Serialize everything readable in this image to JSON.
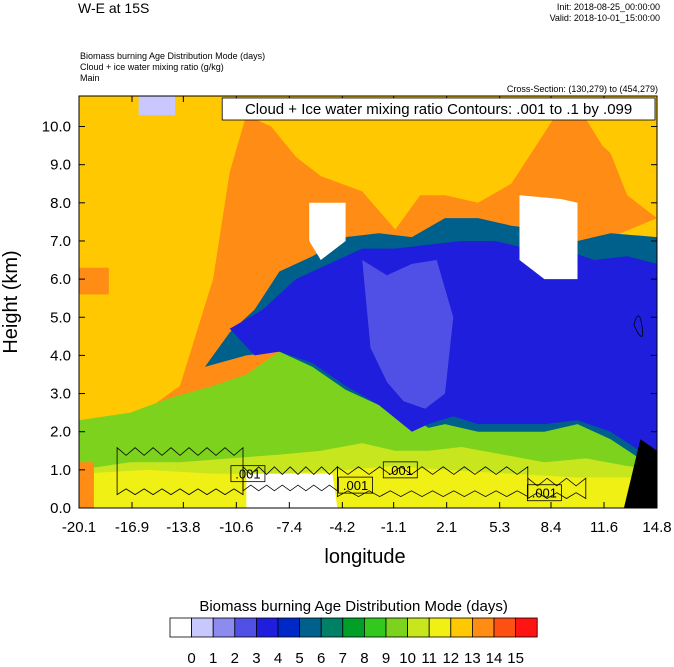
{
  "header": {
    "title": "W-E at 15S",
    "init": "Init: 2018-08-25_00:00:00",
    "valid": "Valid: 2018-10-01_15:00:00",
    "field_lines": [
      "Biomass burning Age Distribution Mode   (days)",
      "Cloud + ice water mixing ratio   (g/kg)",
      "Main"
    ],
    "cross_section": "Cross-Section: (130,279) to (454,279)"
  },
  "chart_data": {
    "type": "heatmap",
    "contour_title": "Cloud + Ice water mixing ratio Contours: .001 to .1 by .099",
    "xlabel": "longitude",
    "ylabel": "Height (km)",
    "xlim": [
      -20.1,
      14.8
    ],
    "ylim": [
      0.0,
      10.8
    ],
    "x_ticks": [
      "-20.1",
      "-16.9",
      "-13.8",
      "-10.6",
      "-7.4",
      "-4.2",
      "-1.1",
      "2.1",
      "5.3",
      "8.4",
      "11.6",
      "14.8"
    ],
    "y_ticks": [
      "0.0",
      "1.0",
      "2.0",
      "3.0",
      "4.0",
      "5.0",
      "6.0",
      "7.0",
      "8.0",
      "9.0",
      "10.0"
    ],
    "contour_labels": [
      {
        "text": ".001",
        "lon": -9.9,
        "height": 0.9
      },
      {
        "text": ".001",
        "lon": -3.4,
        "height": 0.6
      },
      {
        "text": ".001",
        "lon": -0.7,
        "height": 1.0
      },
      {
        "text": ".001",
        "lon": 8.0,
        "height": 0.4
      }
    ],
    "colorbar": {
      "title": "Biomass burning Age Distribution Mode  (days)",
      "tick_labels": [
        "0",
        "1",
        "2",
        "3",
        "4",
        "5",
        "6",
        "7",
        "8",
        "9",
        "10",
        "11",
        "12",
        "13",
        "14",
        "15"
      ],
      "colors": [
        "#ffffff",
        "#c8c8ff",
        "#8c8cf0",
        "#5050e6",
        "#1e1edc",
        "#0028c8",
        "#00608c",
        "#008064",
        "#00a028",
        "#32c81e",
        "#7dd21e",
        "#c8e61e",
        "#f0f014",
        "#ffc800",
        "#ff8c14",
        "#ff5014",
        "#ff1414"
      ]
    },
    "background_color": "#ffc800",
    "layers": [
      {
        "name": "age 13-14",
        "color": "#ff8c14",
        "x": [
          -20.1,
          -14.0,
          -12.0,
          -11.0,
          -10.0,
          -8.5,
          -7.0,
          -5.5,
          -3.0,
          -1.0,
          0.5,
          2.0,
          4.0,
          6.0,
          7.5,
          9.0,
          10.5,
          11.5,
          12.0,
          13.0,
          14.8
        ],
        "y": [
          1.3,
          3.2,
          6.0,
          8.8,
          10.3,
          10.0,
          9.2,
          8.7,
          8.3,
          7.3,
          8.2,
          8.2,
          8.0,
          8.5,
          9.5,
          10.5,
          10.2,
          9.5,
          9.3,
          8.2,
          7.6
        ]
      },
      {
        "name": "age 12-13",
        "color": "#ffc800",
        "x": [
          -20.1,
          -17.0,
          -15.0,
          -13.5,
          -12.8,
          -12.0,
          -14.8,
          -20.1
        ],
        "y": [
          5.8,
          6.1,
          6.5,
          6.8,
          8.0,
          10.8,
          10.8,
          10.8
        ]
      },
      {
        "name": "age 9-10",
        "color": "#7dd21e",
        "x": [
          -20.1,
          -17.0,
          -14.5,
          -12.0,
          -10.0,
          -8.0,
          -6.0,
          -4.0,
          -2.0,
          0.0,
          2.0,
          4.0,
          6.0,
          8.0,
          10.0,
          12.0,
          14.8
        ],
        "y": [
          2.3,
          2.5,
          2.9,
          3.2,
          3.5,
          4.1,
          4.5,
          4.4,
          4.6,
          5.2,
          5.6,
          5.9,
          6.3,
          6.6,
          6.8,
          7.0,
          7.0
        ]
      },
      {
        "name": "age 6-7",
        "color": "#00608c",
        "x": [
          -12.5,
          -11.0,
          -9.5,
          -8.0,
          -6.0,
          -4.0,
          -2.0,
          0.0,
          2.0,
          4.0,
          6.0,
          8.0,
          10.0,
          12.0,
          14.8,
          14.8,
          12.0,
          10.0,
          8.0,
          6.0,
          4.0,
          2.0,
          1.0,
          0.0,
          -2.0,
          -4.0,
          -6.0,
          -8.0,
          -10.0,
          -12.5
        ],
        "y": [
          3.7,
          4.6,
          5.2,
          6.2,
          6.6,
          7.1,
          7.2,
          7.1,
          7.6,
          7.6,
          7.4,
          7.3,
          7.0,
          7.2,
          7.1,
          1.0,
          1.8,
          2.2,
          2.0,
          2.0,
          2.0,
          2.2,
          2.1,
          2.4,
          2.7,
          3.1,
          3.7,
          4.1,
          4.0,
          3.7
        ]
      },
      {
        "name": "age 4-5",
        "color": "#1e1edc",
        "x": [
          -11.0,
          -9.0,
          -7.0,
          -5.0,
          -3.0,
          -1.0,
          1.0,
          3.0,
          5.0,
          7.0,
          9.0,
          11.0,
          13.0,
          14.8,
          14.8,
          12.0,
          10.0,
          8.0,
          6.0,
          4.0,
          2.5,
          1.0,
          0.0,
          -2.0,
          -4.0,
          -6.0,
          -8.0,
          -9.5,
          -11.0
        ],
        "y": [
          4.7,
          5.2,
          6.0,
          6.4,
          6.8,
          6.8,
          6.9,
          7.0,
          7.0,
          6.8,
          6.8,
          6.5,
          6.6,
          6.4,
          1.2,
          2.0,
          2.3,
          2.2,
          2.2,
          2.2,
          2.4,
          2.2,
          2.0,
          2.7,
          3.2,
          3.8,
          4.1,
          4.0,
          4.7
        ]
      },
      {
        "name": "age 3-4",
        "color": "#5050e6",
        "x": [
          -3.0,
          -1.5,
          0.0,
          1.5,
          2.5,
          2.0,
          0.8,
          -0.5,
          -1.5,
          -2.5,
          -3.0
        ],
        "y": [
          6.5,
          6.1,
          6.4,
          6.5,
          5.0,
          3.0,
          2.6,
          2.8,
          3.3,
          4.2,
          6.5
        ]
      },
      {
        "name": "age 10-11",
        "color": "#c8e61e",
        "x": [
          -20.1,
          -17.0,
          -14.0,
          -11.0,
          -8.0,
          -5.5,
          -3.0,
          -1.0,
          1.0,
          3.0,
          5.5,
          8.0,
          10.5,
          13.0,
          14.8,
          14.8,
          -20.1
        ],
        "y": [
          1.0,
          1.2,
          1.2,
          1.3,
          1.4,
          1.5,
          1.7,
          1.5,
          1.5,
          1.6,
          1.4,
          1.2,
          1.3,
          1.1,
          1.0,
          0.0,
          0.0
        ]
      },
      {
        "name": "age 11-12",
        "color": "#f0f014",
        "x": [
          -20.1,
          -16.0,
          -12.0,
          -8.0,
          -4.0,
          -1.0,
          2.0,
          6.0,
          10.0,
          14.8,
          14.8,
          -20.1
        ],
        "y": [
          0.9,
          1.0,
          0.9,
          0.9,
          1.0,
          1.1,
          1.0,
          0.9,
          0.8,
          0.8,
          0.0,
          0.0
        ]
      },
      {
        "name": "age 0-1 low",
        "color": "#ffffff",
        "x": [
          -10.0,
          -7.0,
          -4.8,
          -4.5,
          -5.5,
          -10.0
        ],
        "y": [
          0.9,
          0.9,
          0.9,
          0.0,
          0.0,
          0.0
        ]
      },
      {
        "name": "age 0-1 upper west",
        "color": "#ffffff",
        "x": [
          -6.2,
          -4.0,
          -4.0,
          -5.5,
          -6.2
        ],
        "y": [
          8.0,
          8.0,
          7.0,
          6.5,
          7.0
        ]
      },
      {
        "name": "age 0-1 upper east",
        "color": "#ffffff",
        "x": [
          6.5,
          9.0,
          10.0,
          10.0,
          8.0,
          6.5
        ],
        "y": [
          8.2,
          8.1,
          8.0,
          6.0,
          6.0,
          6.5
        ]
      },
      {
        "name": "age 13-14 surface west",
        "color": "#ff8c14",
        "x": [
          -20.1,
          -19.2,
          -19.2,
          -20.1
        ],
        "y": [
          1.2,
          1.2,
          0.0,
          0.0
        ]
      },
      {
        "name": "surface black",
        "color": "#000000",
        "x": [
          12.8,
          13.8,
          14.8,
          14.8,
          12.8
        ],
        "y": [
          0.0,
          1.8,
          1.5,
          0.0,
          0.0
        ]
      }
    ],
    "patches": [
      {
        "color": "#c8c8ff",
        "x": [
          -16.5,
          -14.3
        ],
        "y": [
          10.3,
          10.8
        ]
      },
      {
        "color": "#ff8c14",
        "x": [
          -20.1,
          -18.3
        ],
        "y": [
          5.6,
          6.3
        ]
      }
    ]
  }
}
